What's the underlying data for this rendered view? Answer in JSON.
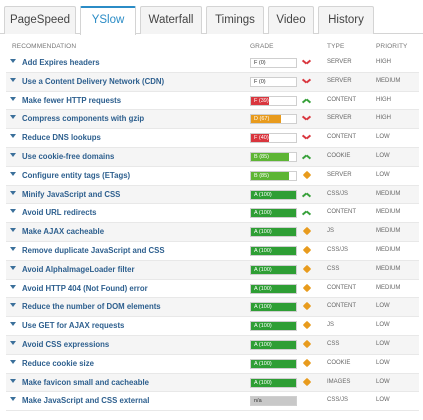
{
  "tabs": [
    "PageSpeed",
    "YSlow",
    "Waterfall",
    "Timings",
    "Video",
    "History"
  ],
  "active_tab": "YSlow",
  "columns": {
    "recommendation": "RECOMMENDATION",
    "grade": "GRADE",
    "type": "TYPE",
    "priority": "PRIORITY"
  },
  "colors": {
    "grade_F": "#d9363e",
    "grade_D": "#e89b1d",
    "grade_B": "#5db534",
    "grade_A": "#2e9e34",
    "grade_na": "#c8c8c8"
  },
  "rows": [
    {
      "name": "Add Expires headers",
      "grade": "F (0)",
      "score": 0,
      "letter": "F",
      "trend": "down",
      "type": "SERVER",
      "priority": "HIGH"
    },
    {
      "name": "Use a Content Delivery Network (CDN)",
      "grade": "F (0)",
      "score": 0,
      "letter": "F",
      "trend": "down",
      "type": "SERVER",
      "priority": "MEDIUM"
    },
    {
      "name": "Make fewer HTTP requests",
      "grade": "F (39)",
      "score": 39,
      "letter": "F",
      "trend": "up",
      "type": "CONTENT",
      "priority": "HIGH"
    },
    {
      "name": "Compress components with gzip",
      "grade": "D (67)",
      "score": 67,
      "letter": "D",
      "trend": "down",
      "type": "SERVER",
      "priority": "HIGH"
    },
    {
      "name": "Reduce DNS lookups",
      "grade": "F (40)",
      "score": 40,
      "letter": "F",
      "trend": "down",
      "type": "CONTENT",
      "priority": "LOW"
    },
    {
      "name": "Use cookie-free domains",
      "grade": "B (85)",
      "score": 85,
      "letter": "B",
      "trend": "up",
      "type": "COOKIE",
      "priority": "LOW"
    },
    {
      "name": "Configure entity tags (ETags)",
      "grade": "B (85)",
      "score": 85,
      "letter": "B",
      "trend": "neutral",
      "type": "SERVER",
      "priority": "LOW"
    },
    {
      "name": "Minify JavaScript and CSS",
      "grade": "A (100)",
      "score": 100,
      "letter": "A",
      "trend": "up",
      "type": "CSS/JS",
      "priority": "MEDIUM"
    },
    {
      "name": "Avoid URL redirects",
      "grade": "A (100)",
      "score": 100,
      "letter": "A",
      "trend": "up",
      "type": "CONTENT",
      "priority": "MEDIUM"
    },
    {
      "name": "Make AJAX cacheable",
      "grade": "A (100)",
      "score": 100,
      "letter": "A",
      "trend": "neutral",
      "type": "JS",
      "priority": "MEDIUM"
    },
    {
      "name": "Remove duplicate JavaScript and CSS",
      "grade": "A (100)",
      "score": 100,
      "letter": "A",
      "trend": "neutral",
      "type": "CSS/JS",
      "priority": "MEDIUM"
    },
    {
      "name": "Avoid AlphaImageLoader filter",
      "grade": "A (100)",
      "score": 100,
      "letter": "A",
      "trend": "neutral",
      "type": "CSS",
      "priority": "MEDIUM"
    },
    {
      "name": "Avoid HTTP 404 (Not Found) error",
      "grade": "A (100)",
      "score": 100,
      "letter": "A",
      "trend": "neutral",
      "type": "CONTENT",
      "priority": "MEDIUM"
    },
    {
      "name": "Reduce the number of DOM elements",
      "grade": "A (100)",
      "score": 100,
      "letter": "A",
      "trend": "neutral",
      "type": "CONTENT",
      "priority": "LOW"
    },
    {
      "name": "Use GET for AJAX requests",
      "grade": "A (100)",
      "score": 100,
      "letter": "A",
      "trend": "neutral",
      "type": "JS",
      "priority": "LOW"
    },
    {
      "name": "Avoid CSS expressions",
      "grade": "A (100)",
      "score": 100,
      "letter": "A",
      "trend": "neutral",
      "type": "CSS",
      "priority": "LOW"
    },
    {
      "name": "Reduce cookie size",
      "grade": "A (100)",
      "score": 100,
      "letter": "A",
      "trend": "neutral",
      "type": "COOKIE",
      "priority": "LOW"
    },
    {
      "name": "Make favicon small and cacheable",
      "grade": "A (100)",
      "score": 100,
      "letter": "A",
      "trend": "neutral",
      "type": "IMAGES",
      "priority": "LOW"
    },
    {
      "name": "Make JavaScript and CSS external",
      "grade": "n/a",
      "score": 100,
      "letter": "na",
      "trend": "none",
      "type": "CSS/JS",
      "priority": "LOW"
    }
  ]
}
